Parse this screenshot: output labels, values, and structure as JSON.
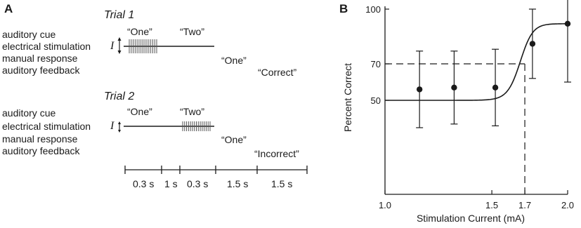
{
  "panel_a": {
    "label": "A",
    "row_labels": [
      "auditory cue",
      "electrical stimulation",
      "manual response",
      "auditory feedback"
    ],
    "trial1": {
      "title": "Trial 1",
      "cue1": "“One”",
      "cue2": "“Two”",
      "current_symbol": "I",
      "response": "“One”",
      "feedback": "“Correct”"
    },
    "trial2": {
      "title": "Trial 2",
      "cue1": "“One”",
      "cue2": "“Two”",
      "current_symbol": "I",
      "response": "“One”",
      "feedback": "“Incorrect”"
    },
    "timeline": [
      "0.3 s",
      "1 s",
      "0.3 s",
      "1.5 s",
      "1.5 s"
    ]
  },
  "panel_b": {
    "label": "B"
  },
  "chart_data": {
    "type": "scatter",
    "xlabel": "Stimulation Current (mA)",
    "ylabel": "Percent Correct",
    "x_scale": "log",
    "xlim": [
      1.0,
      2.0
    ],
    "ylim": [
      0,
      100
    ],
    "xticks": [
      1.0,
      1.5,
      1.7,
      2.0
    ],
    "xtick_labels": [
      "1.0",
      "1.5",
      "1.7",
      "2.0"
    ],
    "yticks": [
      50,
      70,
      100
    ],
    "ytick_labels": [
      "50",
      "70",
      "100"
    ],
    "points": [
      {
        "x": 1.14,
        "y": 56,
        "err": 21
      },
      {
        "x": 1.3,
        "y": 57,
        "err": 20
      },
      {
        "x": 1.52,
        "y": 57,
        "err": 21
      },
      {
        "x": 1.75,
        "y": 81,
        "err": 19
      },
      {
        "x": 2.0,
        "y": 92,
        "err": 32
      }
    ],
    "fit_curve": {
      "type": "sigmoid",
      "lower": 50,
      "upper": 92,
      "midpoint": 1.67,
      "slope": 0.04
    },
    "threshold": {
      "x": 1.7,
      "y": 70
    },
    "grid": false
  }
}
